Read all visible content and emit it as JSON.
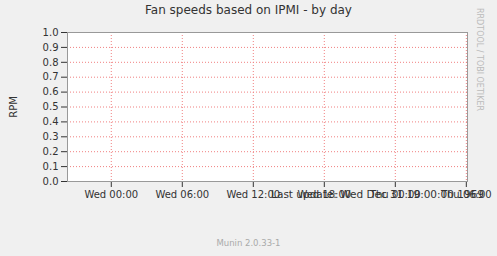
{
  "chart_data": {
    "type": "line",
    "title": "Fan speeds based on IPMI - by day",
    "y_label": "RPM",
    "annotations": [
      "Last update:  Wed Dec 31 19:00:00 1969",
      "Munin 2.0.33-1",
      "RRDTOOL / TOBI OETIKER"
    ],
    "x": [],
    "series": [],
    "xlim": [
      -3.7,
      30.1
    ],
    "xticks": [
      {
        "value": 0,
        "label": "Wed 00:00"
      },
      {
        "value": 6,
        "label": "Wed 06:00"
      },
      {
        "value": 12,
        "label": "Wed 12:00"
      },
      {
        "value": 18,
        "label": "Wed 18:00"
      },
      {
        "value": 24,
        "label": "Thu 00:00"
      },
      {
        "value": 30,
        "label": "Thu 06:00"
      }
    ],
    "ylim": [
      0,
      1
    ],
    "yticks": [
      {
        "value": 0,
        "label": "0.0"
      },
      {
        "value": 0.1,
        "label": "0.1"
      },
      {
        "value": 0.2,
        "label": "0.2"
      },
      {
        "value": 0.3,
        "label": "0.3"
      },
      {
        "value": 0.4,
        "label": "0.4"
      },
      {
        "value": 0.5,
        "label": "0.5"
      },
      {
        "value": 0.6,
        "label": "0.6"
      },
      {
        "value": 0.7,
        "label": "0.7"
      },
      {
        "value": 0.8,
        "label": "0.8"
      },
      {
        "value": 0.9,
        "label": "0.9"
      },
      {
        "value": 1,
        "label": "1.0"
      }
    ],
    "grid": true
  }
}
